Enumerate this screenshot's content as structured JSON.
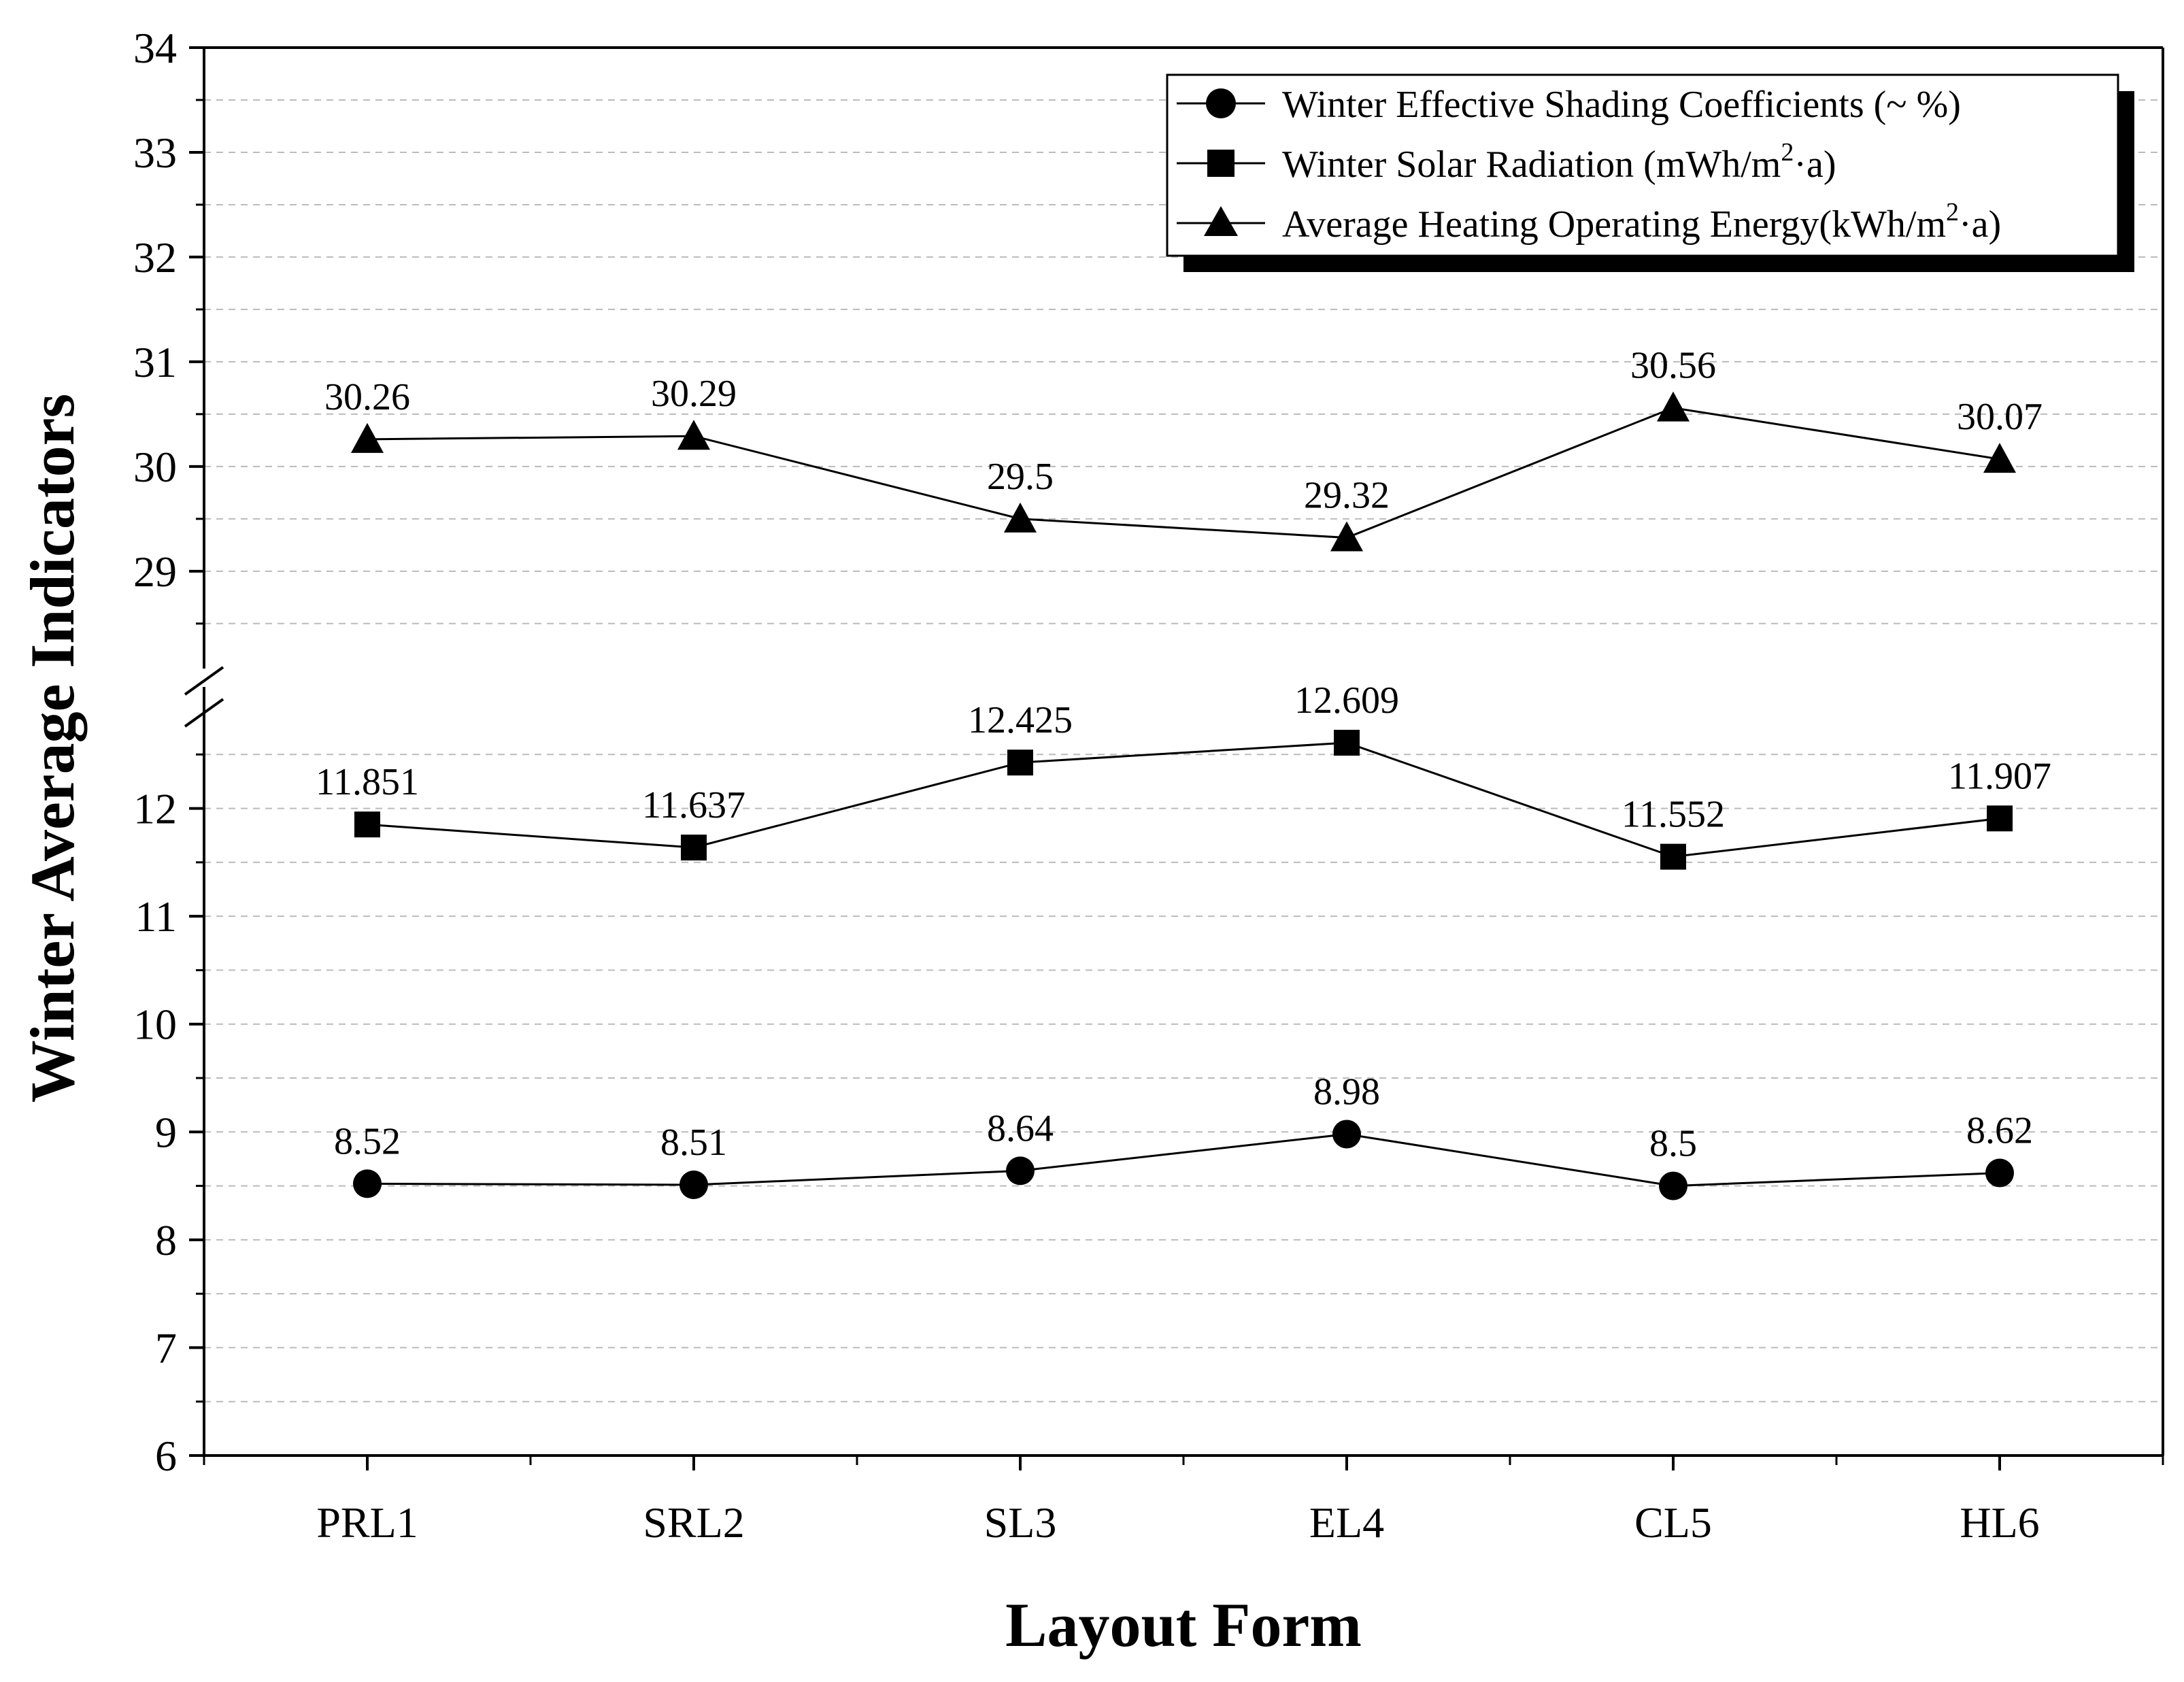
{
  "chart_data": {
    "type": "line",
    "xlabel": "Layout Form",
    "ylabel": "Winter Average Indicators",
    "categories": [
      "PRL1",
      "SRL2",
      "SL3",
      "EL4",
      "CL5",
      "HL6"
    ],
    "y_axis": {
      "lower_segment": {
        "range": [
          6,
          13
        ],
        "ticks": [
          "6",
          "7",
          "8",
          "9",
          "10",
          "11",
          "12"
        ]
      },
      "upper_segment": {
        "range": [
          28.2,
          34
        ],
        "ticks": [
          "29",
          "30",
          "31",
          "32",
          "33",
          "34"
        ]
      },
      "axis_break": true
    },
    "grid": "dashed-horizontal",
    "legend": {
      "position": "top-right",
      "entries": [
        {
          "marker": "circle-icon",
          "text": "Winter Effective Shading Coefficients (~ %)"
        },
        {
          "marker": "square-icon",
          "text_main": "Winter Solar Radiation (mWh/m",
          "text_sup": "2",
          "text_end": "·a)"
        },
        {
          "marker": "triangle-icon",
          "text_main": "Average Heating Operating Energy(kWh/m",
          "text_sup": "2",
          "text_end": "·a)"
        }
      ]
    },
    "series": [
      {
        "name": "Winter Effective Shading Coefficients (~ %)",
        "marker": "circle",
        "values": [
          8.52,
          8.51,
          8.64,
          8.98,
          8.5,
          8.62
        ],
        "labels": [
          "8.52",
          "8.51",
          "8.64",
          "8.98",
          "8.5",
          "8.62"
        ]
      },
      {
        "name": "Winter Solar Radiation (mWh/m2·a)",
        "marker": "square",
        "values": [
          11.851,
          11.637,
          12.425,
          12.609,
          11.552,
          11.907
        ],
        "labels": [
          "11.851",
          "11.637",
          "12.425",
          "12.609",
          "11.552",
          "11.907"
        ]
      },
      {
        "name": "Average Heating Operating Energy(kWh/m2·a)",
        "marker": "triangle",
        "values": [
          30.26,
          30.29,
          29.5,
          29.32,
          30.56,
          30.07
        ],
        "labels": [
          "30.26",
          "30.29",
          "29.5",
          "29.32",
          "30.56",
          "30.07"
        ]
      }
    ],
    "colors": {
      "line": "#000000",
      "grid": "#bbbbbb",
      "background": "#ffffff"
    }
  }
}
